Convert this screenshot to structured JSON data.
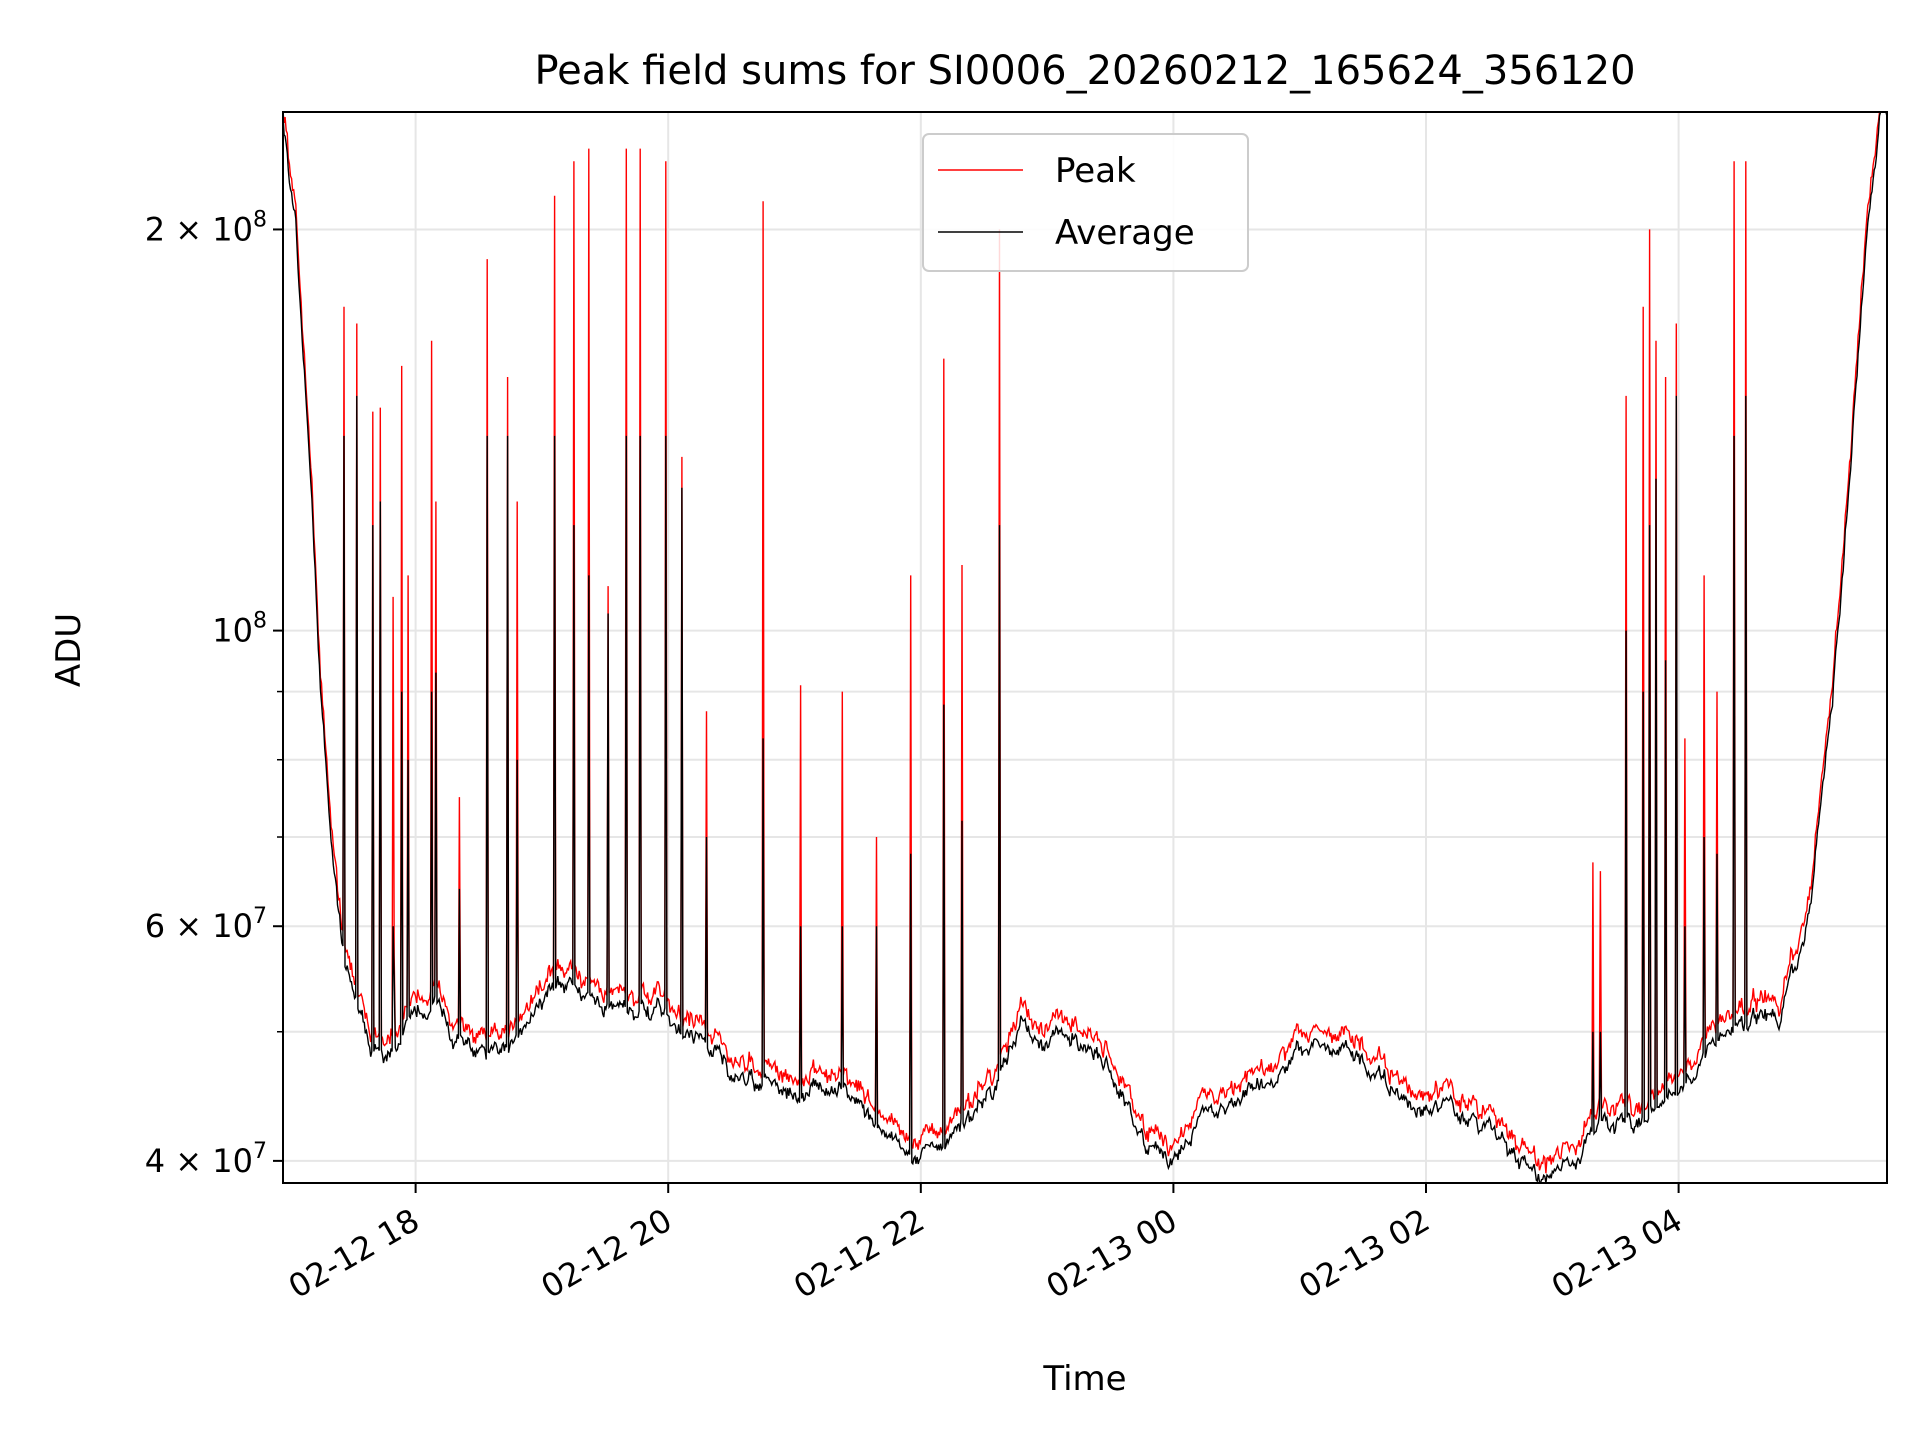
{
  "chart_data": {
    "type": "line",
    "title": "Peak field sums for SI0006_20260212_165624_356120",
    "xlabel": "Time",
    "ylabel": "ADU",
    "yscale": "log",
    "ylim": [
      38500000,
      245000000
    ],
    "xlim_hours": [
      -1.05,
      11.65
    ],
    "grid": true,
    "legend_position": "upper-center",
    "x_ticks": [
      {
        "h": 0,
        "label": "02-12 18"
      },
      {
        "h": 2,
        "label": "02-12 20"
      },
      {
        "h": 4,
        "label": "02-12 22"
      },
      {
        "h": 6,
        "label": "02-13 00"
      },
      {
        "h": 8,
        "label": "02-13 02"
      },
      {
        "h": 10,
        "label": "02-13 04"
      }
    ],
    "y_ticks": [
      {
        "v": 40000000,
        "label": "4 × 10",
        "exp": "7"
      },
      {
        "v": 60000000,
        "label": "6 × 10",
        "exp": "7"
      },
      {
        "v": 100000000,
        "label": "10",
        "exp": "8"
      },
      {
        "v": 200000000,
        "label": "2 × 10",
        "exp": "8"
      }
    ],
    "y_minor_ticks": [
      50000000,
      70000000,
      80000000,
      90000000
    ],
    "series": [
      {
        "name": "Peak",
        "color": "#ff0000"
      },
      {
        "name": "Average",
        "color": "#000000"
      }
    ],
    "baseline_hours": [
      -1.05,
      -0.95,
      -0.85,
      -0.75,
      -0.65,
      -0.55,
      -0.45,
      -0.35,
      -0.25,
      -0.15,
      -0.05,
      0.05,
      0.15,
      0.3,
      0.5,
      0.65,
      0.8,
      0.95,
      1.1,
      1.25,
      1.4,
      1.6,
      1.8,
      2.0,
      2.2,
      2.4,
      2.6,
      2.8,
      3.0,
      3.2,
      3.4,
      3.6,
      3.8,
      4.0,
      4.2,
      4.4,
      4.6,
      4.8,
      5.0,
      5.2,
      5.4,
      5.6,
      5.8,
      6.0,
      6.2,
      6.4,
      6.6,
      6.8,
      7.0,
      7.2,
      7.4,
      7.6,
      7.8,
      8.0,
      8.2,
      8.4,
      8.6,
      8.8,
      9.0,
      9.2,
      9.4,
      9.6,
      9.8,
      10.0,
      10.2,
      10.4,
      10.6,
      10.8,
      11.0,
      11.1,
      11.2,
      11.3,
      11.4,
      11.5,
      11.6
    ],
    "baseline_average": [
      245000000,
      200000000,
      140000000,
      90000000,
      66000000,
      56000000,
      51000000,
      49000000,
      48500000,
      49000000,
      51000000,
      52000000,
      53000000,
      50000000,
      48000000,
      47000000,
      50000000,
      53000000,
      54000000,
      53500000,
      53000000,
      52500000,
      52000000,
      51000000,
      49500000,
      48000000,
      46000000,
      45500000,
      45000000,
      45500000,
      45000000,
      43000000,
      41500000,
      40500000,
      41000000,
      43000000,
      46000000,
      51000000,
      49000000,
      49500000,
      47500000,
      45000000,
      40500000,
      40000000,
      43000000,
      44000000,
      45000000,
      46000000,
      48500000,
      49000000,
      48000000,
      46000000,
      44500000,
      44000000,
      43500000,
      42500000,
      41500000,
      39500000,
      38500000,
      40000000,
      42500000,
      43000000,
      43500000,
      45500000,
      48000000,
      50000000,
      51000000,
      51500000,
      58000000,
      70000000,
      85000000,
      110000000,
      150000000,
      200000000,
      245000000
    ],
    "peak_ratio": 1.02,
    "spikes": [
      {
        "h": -0.57,
        "peak": 175000000,
        "avg": 140000000
      },
      {
        "h": -0.47,
        "peak": 170000000,
        "avg": 150000000
      },
      {
        "h": -0.34,
        "peak": 146000000,
        "avg": 120000000
      },
      {
        "h": -0.28,
        "peak": 147000000,
        "avg": 125000000
      },
      {
        "h": -0.11,
        "peak": 158000000,
        "avg": 90000000
      },
      {
        "h": -0.06,
        "peak": 110000000,
        "avg": 80000000
      },
      {
        "h": -0.18,
        "peak": 106000000,
        "avg": 60000000
      },
      {
        "h": -0.17,
        "peak": 57000000,
        "avg": 55000000
      },
      {
        "h": 0.13,
        "peak": 165000000,
        "avg": 90000000
      },
      {
        "h": 0.16,
        "peak": 125000000,
        "avg": 93000000
      },
      {
        "h": 0.35,
        "peak": 75000000,
        "avg": 64000000
      },
      {
        "h": 0.57,
        "peak": 190000000,
        "avg": 140000000
      },
      {
        "h": 0.73,
        "peak": 155000000,
        "avg": 140000000
      },
      {
        "h": 0.8,
        "peak": 125000000,
        "avg": 80000000
      },
      {
        "h": 1.1,
        "peak": 212000000,
        "avg": 140000000
      },
      {
        "h": 1.25,
        "peak": 225000000,
        "avg": 120000000
      },
      {
        "h": 1.37,
        "peak": 230000000,
        "avg": 110000000
      },
      {
        "h": 1.52,
        "peak": 108000000,
        "avg": 103000000
      },
      {
        "h": 1.67,
        "peak": 230000000,
        "avg": 140000000
      },
      {
        "h": 1.78,
        "peak": 230000000,
        "avg": 140000000
      },
      {
        "h": 1.98,
        "peak": 225000000,
        "avg": 140000000
      },
      {
        "h": 2.11,
        "peak": 135000000,
        "avg": 128000000
      },
      {
        "h": 2.3,
        "peak": 87000000,
        "avg": 70000000
      },
      {
        "h": 2.75,
        "peak": 210000000,
        "avg": 83000000
      },
      {
        "h": 3.05,
        "peak": 91000000,
        "avg": 60000000
      },
      {
        "h": 3.38,
        "peak": 90000000,
        "avg": 60000000
      },
      {
        "h": 3.65,
        "peak": 70000000,
        "avg": 60000000
      },
      {
        "h": 3.92,
        "peak": 110000000,
        "avg": 68000000
      },
      {
        "h": 4.18,
        "peak": 160000000,
        "avg": 88000000
      },
      {
        "h": 4.33,
        "peak": 112000000,
        "avg": 72000000
      },
      {
        "h": 4.62,
        "peak": 200000000,
        "avg": 120000000
      },
      {
        "h": 9.32,
        "peak": 67000000,
        "avg": 50000000
      },
      {
        "h": 9.38,
        "peak": 66000000,
        "avg": 50000000
      },
      {
        "h": 9.58,
        "peak": 150000000,
        "avg": 100000000
      },
      {
        "h": 9.72,
        "peak": 175000000,
        "avg": 90000000
      },
      {
        "h": 9.77,
        "peak": 200000000,
        "avg": 120000000
      },
      {
        "h": 9.82,
        "peak": 165000000,
        "avg": 130000000
      },
      {
        "h": 9.9,
        "peak": 155000000,
        "avg": 95000000
      },
      {
        "h": 9.98,
        "peak": 170000000,
        "avg": 150000000
      },
      {
        "h": 10.05,
        "peak": 83000000,
        "avg": 60000000
      },
      {
        "h": 10.2,
        "peak": 110000000,
        "avg": 70000000
      },
      {
        "h": 10.3,
        "peak": 90000000,
        "avg": 68000000
      },
      {
        "h": 10.44,
        "peak": 225000000,
        "avg": 140000000
      },
      {
        "h": 10.53,
        "peak": 225000000,
        "avg": 150000000
      }
    ]
  }
}
